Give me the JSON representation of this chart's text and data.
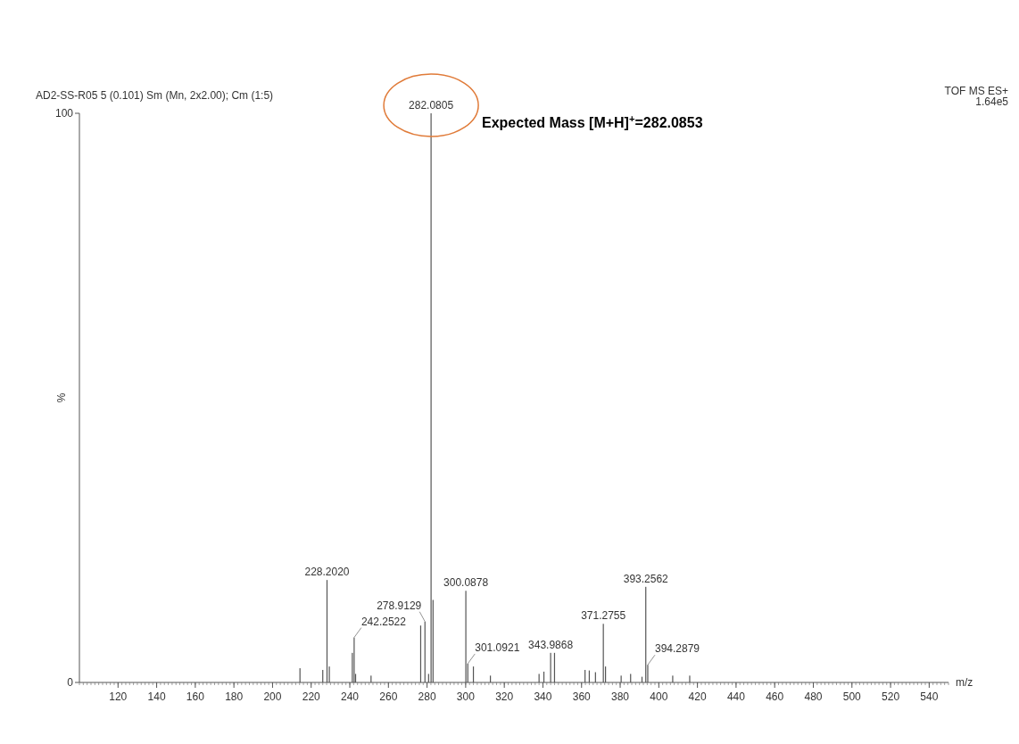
{
  "chart_data": {
    "type": "bar",
    "title": "AD2-SS-R05  5 (0.101) Sm (Mn, 2x2.00); Cm (1:5)",
    "xlabel": "m/z",
    "ylabel": "%",
    "annotations": [
      "TOF MS ES+",
      "1.64e5",
      "Expected Mass [M+H]$^{+}$=282.0853",
      {
        "text": "228.2020",
        "x": 228.202,
        "y": 18.0
      },
      {
        "text": "242.2522",
        "x": 242.2522,
        "y": 7.9
      },
      {
        "text": "278.9129",
        "x": 278.9129,
        "y": 10.7
      },
      {
        "text": "282.0805",
        "x": 282.0805,
        "y": 100
      },
      {
        "text": "300.0878",
        "x": 300.0878,
        "y": 16.1
      },
      {
        "text": "301.0921",
        "x": 301.0921,
        "y": 3.3
      },
      {
        "text": "343.9868",
        "x": 343.9868,
        "y": 5.2
      },
      {
        "text": "371.2755",
        "x": 371.2755,
        "y": 10.3
      },
      {
        "text": "393.2562",
        "x": 393.2562,
        "y": 16.8
      },
      {
        "text": "394.2879",
        "x": 394.2879,
        "y": 3.1
      }
    ],
    "color": "#555555",
    "x": [
      214.2,
      226.0,
      228.202,
      229.4,
      241.3,
      242.2522,
      243.0,
      251.0,
      276.7,
      278.9129,
      280.8,
      282.0805,
      283.1,
      300.0878,
      301.0921,
      304.0,
      312.8,
      338.0,
      340.5,
      343.9868,
      346.0,
      361.8,
      364.0,
      367.2,
      371.2755,
      372.4,
      380.5,
      385.4,
      391.3,
      393.2562,
      394.2879,
      407.2,
      416.0
    ],
    "values": [
      2.5,
      2.2,
      18.0,
      2.8,
      5.2,
      7.9,
      1.5,
      1.2,
      10.0,
      10.7,
      1.5,
      100,
      14.5,
      16.1,
      3.3,
      2.8,
      1.2,
      1.5,
      1.9,
      5.2,
      5.2,
      2.2,
      2.1,
      1.8,
      10.3,
      2.8,
      1.2,
      1.5,
      1.0,
      16.8,
      3.1,
      1.2,
      1.2
    ],
    "xlim": [
      100,
      550
    ],
    "xticks": [
      120,
      140,
      160,
      180,
      200,
      220,
      240,
      260,
      280,
      300,
      320,
      340,
      360,
      380,
      400,
      420,
      440,
      460,
      480,
      500,
      520,
      540
    ],
    "ylim": [
      0,
      100
    ],
    "yticks": [
      0,
      100
    ]
  }
}
